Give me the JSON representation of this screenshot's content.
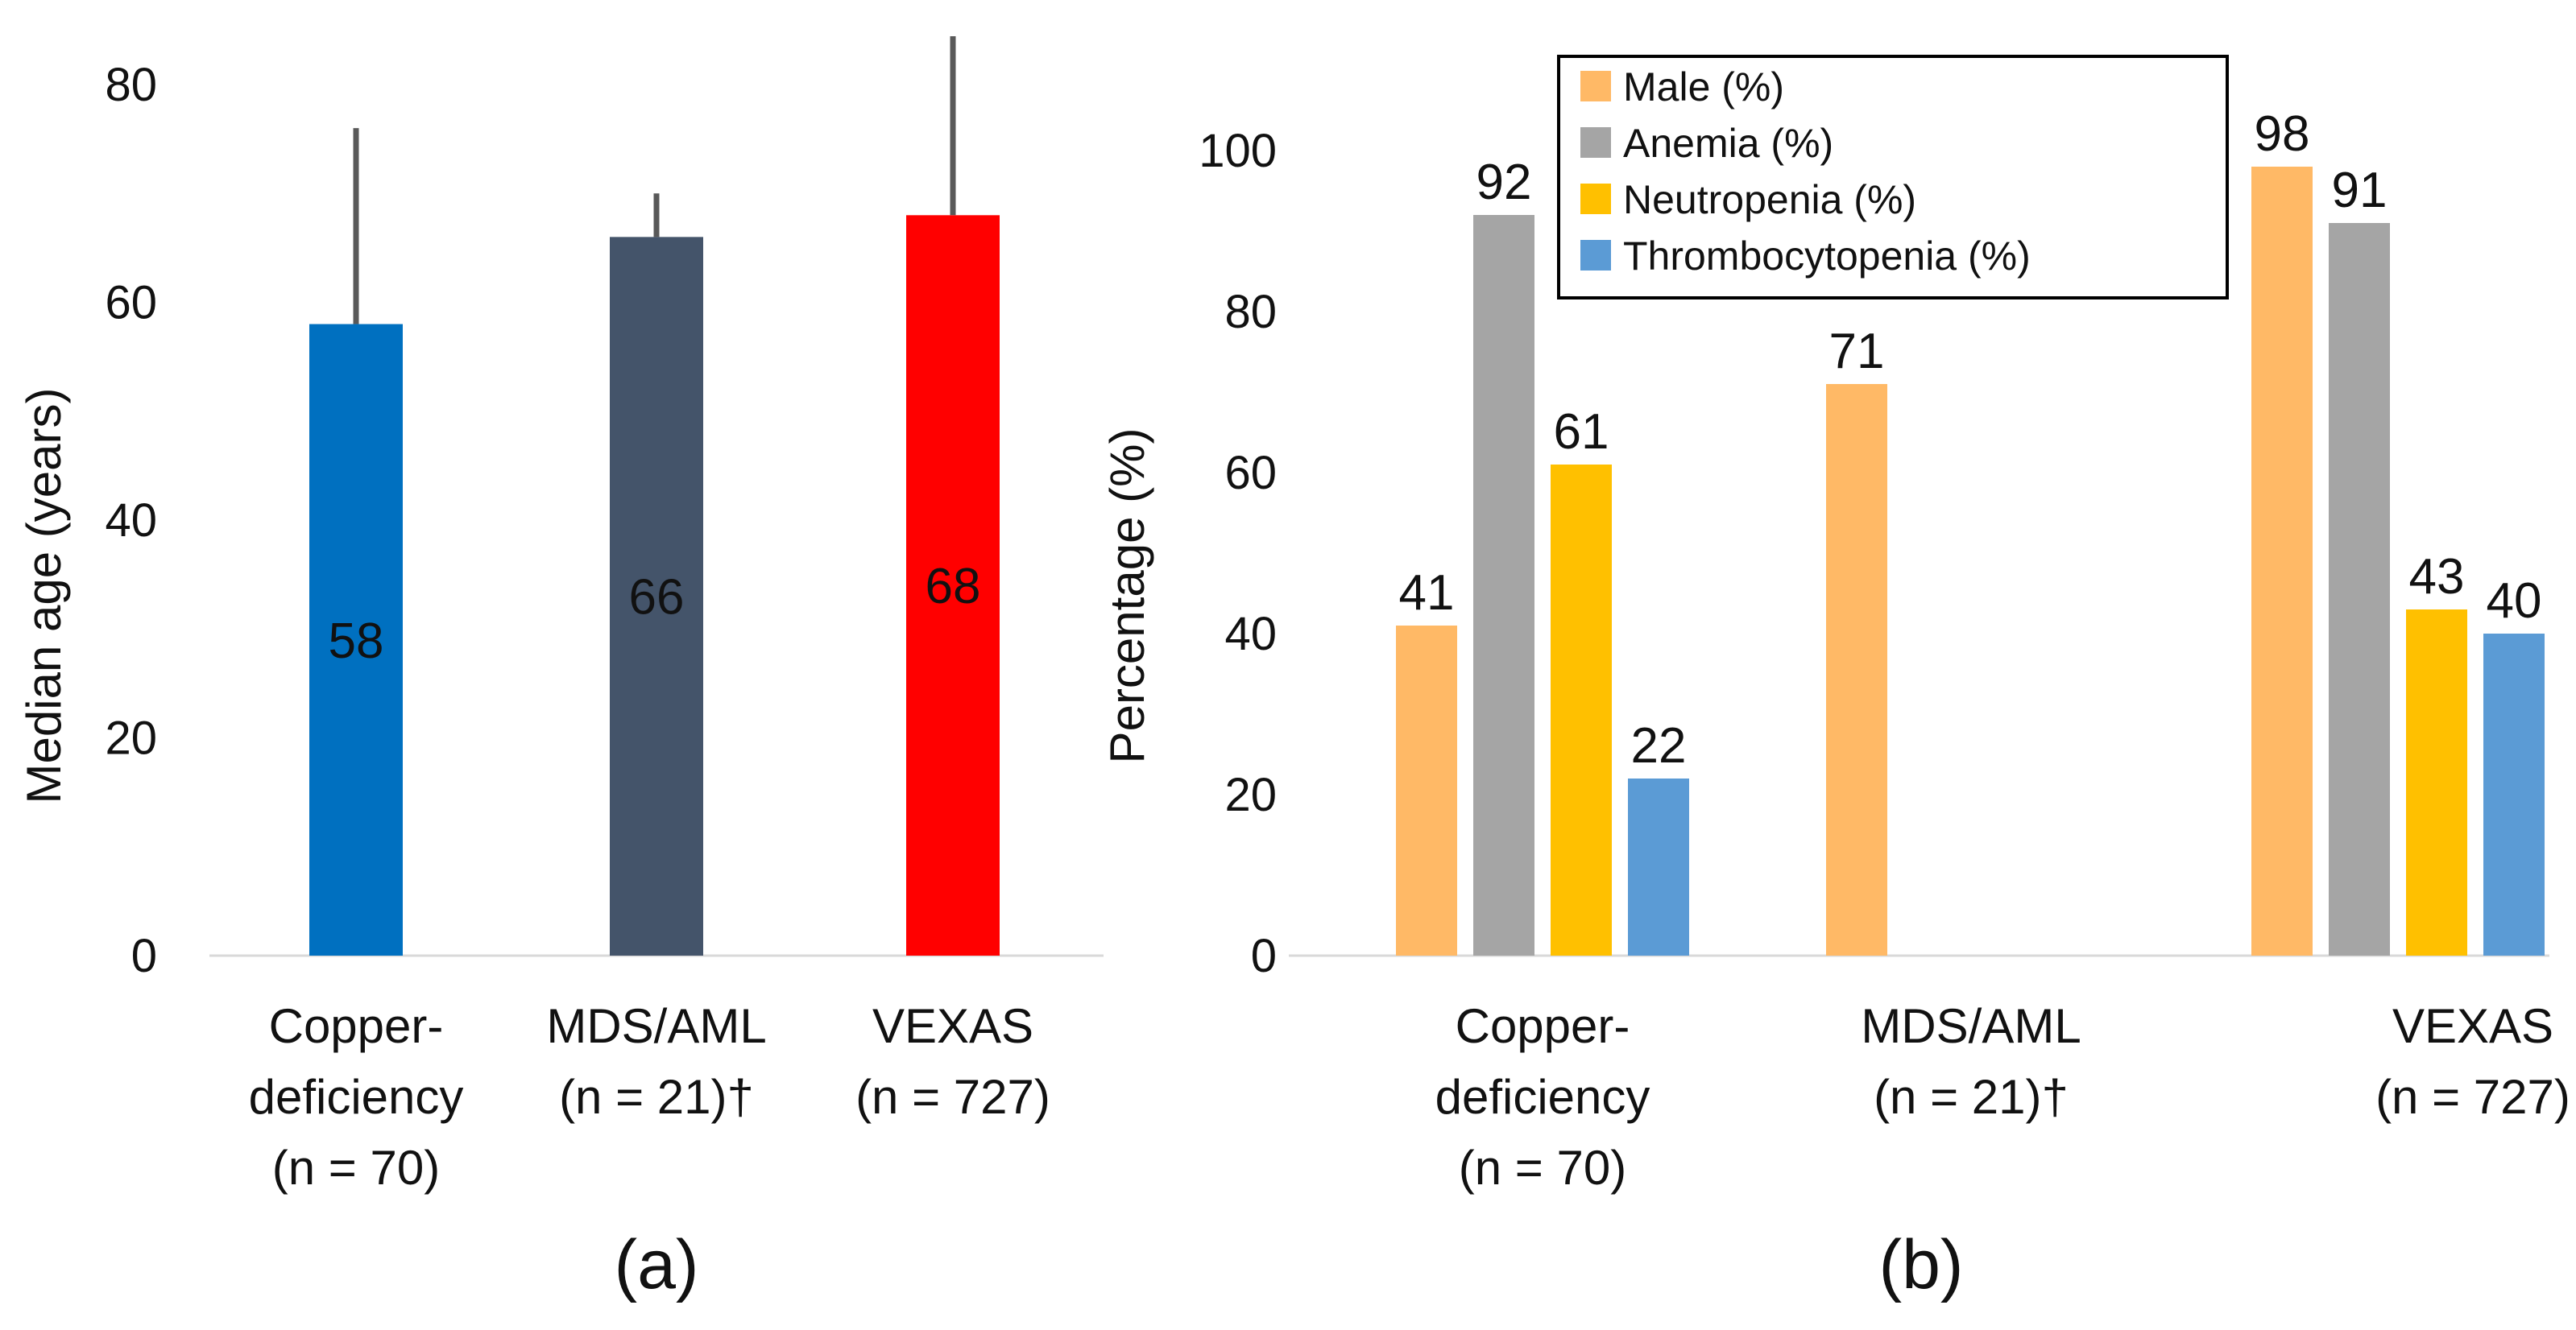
{
  "chart_data": [
    {
      "type": "bar",
      "panel_label": "(a)",
      "ylabel": "Median age (years)",
      "ylim": [
        0,
        80
      ],
      "yticks": [
        0,
        20,
        40,
        60,
        80
      ],
      "categories": [
        [
          "Copper-",
          "deficiency",
          "(n = 70)"
        ],
        [
          "MDS/AML",
          "(n = 21)†"
        ],
        [
          "VEXAS",
          "(n = 727)"
        ]
      ],
      "values": [
        58,
        66,
        68
      ],
      "error_upper": [
        76,
        70,
        85
      ],
      "colors": [
        "#0070C0",
        "#44546A",
        "#FF0000"
      ],
      "data_labels_inside_bars": true,
      "grid": false
    },
    {
      "type": "bar",
      "panel_label": "(b)",
      "ylabel": "Percentage (%)",
      "ylim": [
        0,
        110
      ],
      "yticks": [
        0,
        20,
        40,
        60,
        80,
        100
      ],
      "categories": [
        [
          "Copper-",
          "deficiency",
          "(n = 70)"
        ],
        [
          "MDS/AML",
          "(n = 21)†"
        ],
        [
          "VEXAS",
          "(n = 727)"
        ]
      ],
      "series": [
        {
          "name": "Male (%)",
          "color": "#FFB966",
          "values": [
            41,
            71,
            98
          ]
        },
        {
          "name": "Anemia (%)",
          "color": "#A5A5A5",
          "values": [
            92,
            null,
            91
          ]
        },
        {
          "name": "Neutropenia (%)",
          "color": "#FFC000",
          "values": [
            61,
            null,
            43
          ]
        },
        {
          "name": "Thrombocytopenia (%)",
          "color": "#5B9BD5",
          "values": [
            22,
            null,
            40
          ]
        }
      ],
      "legend": "top-center",
      "grid": false
    }
  ]
}
